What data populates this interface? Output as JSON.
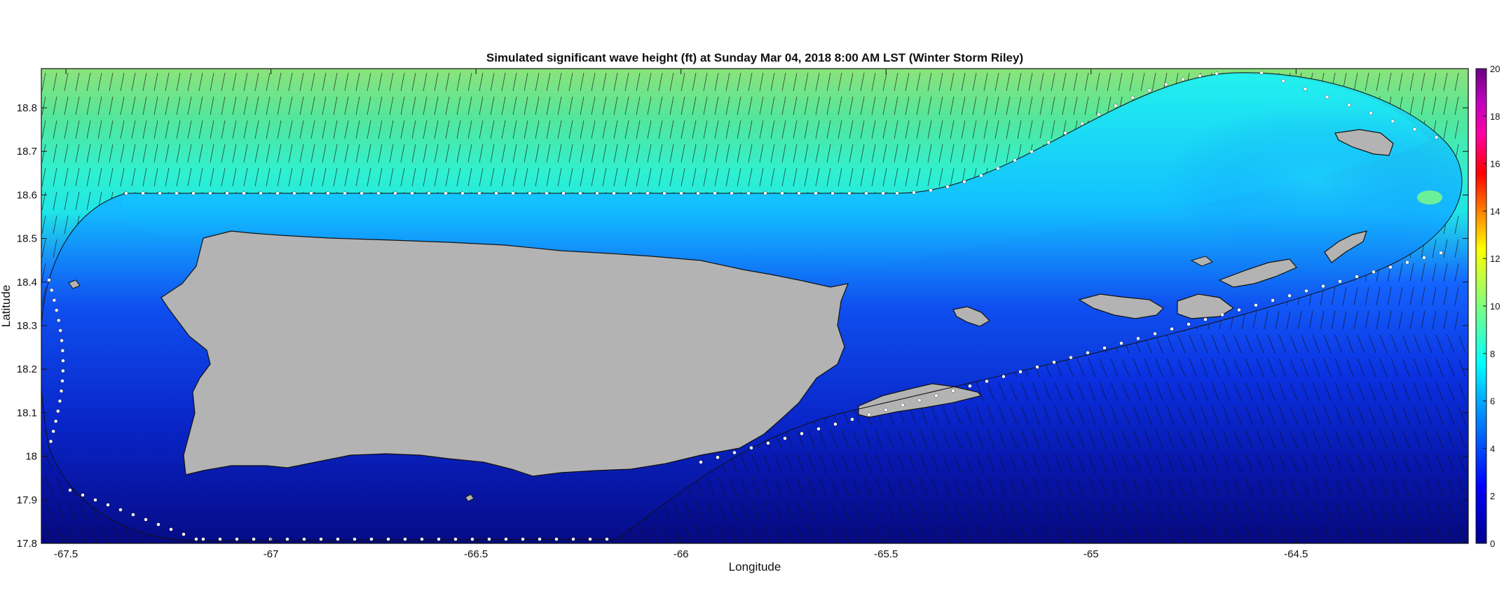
{
  "chart_data": {
    "type": "heatmap",
    "title": "Simulated significant wave height (ft) at Sunday Mar 04, 2018  8:00 AM LST (Winter Storm Riley)",
    "xlabel": "Longitude",
    "ylabel": "Latitude",
    "xlim": [
      -67.56,
      -64.08
    ],
    "ylim": [
      17.8,
      18.89
    ],
    "x_ticks": [
      -67.5,
      -67,
      -66.5,
      -66,
      -65.5,
      -65,
      -64.5
    ],
    "x_tick_labels": [
      "-67.5",
      "-67",
      "-66.5",
      "-66",
      "-65.5",
      "-65",
      "-64.5"
    ],
    "y_ticks": [
      17.8,
      17.9,
      18,
      18.1,
      18.2,
      18.3,
      18.4,
      18.5,
      18.6,
      18.7,
      18.8
    ],
    "y_tick_labels": [
      "17.8",
      "17.9",
      "18",
      "18.1",
      "18.2",
      "18.3",
      "18.4",
      "18.5",
      "18.6",
      "18.7",
      "18.8"
    ],
    "colorbar": {
      "min": 0,
      "max": 20,
      "ticks": [
        0,
        2,
        4,
        6,
        8,
        10,
        12,
        14,
        16,
        18,
        20
      ],
      "tick_labels": [
        "0",
        "2",
        "4",
        "6",
        "8",
        "10",
        "12",
        "14",
        "16",
        "18",
        "20"
      ],
      "colormap": "jet"
    },
    "ranges": {
      "north_offshore_wave_height_ft": [
        8,
        10
      ],
      "north_coastal_band_ft": [
        7,
        8
      ],
      "caribbean_side_wave_height_ft": [
        1,
        4
      ],
      "south_coast_wave_height_ft": [
        0,
        1
      ]
    },
    "wave_direction_north": "from NNE",
    "wave_direction_south": "from NW",
    "land_color": "#b3b3b3",
    "boundary_markers": "white dots along model domain edge"
  }
}
